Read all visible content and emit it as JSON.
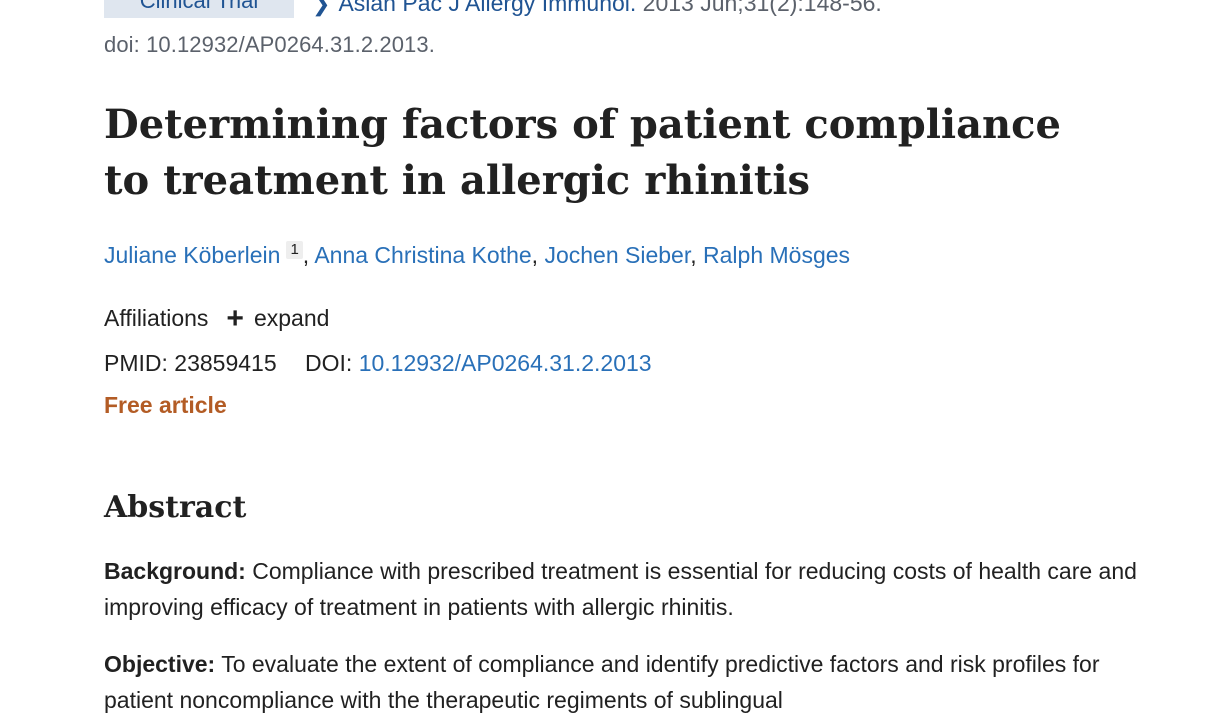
{
  "top": {
    "badge": "Clinical Trial",
    "journal_name": "Asian Pac J Allergy Immunol.",
    "citation": " 2013 Jun;31(2):148-56.",
    "doi_line": "doi: 10.12932/AP0264.31.2.2013."
  },
  "title": "Determining factors of patient compliance to treatment in allergic rhinitis",
  "authors": [
    {
      "name": "Juliane Köberlein",
      "aff": "1"
    },
    {
      "name": "Anna Christina Kothe"
    },
    {
      "name": "Jochen Sieber"
    },
    {
      "name": "Ralph Mösges"
    }
  ],
  "affiliations": {
    "label": "Affiliations",
    "expand": "expand"
  },
  "ids": {
    "pmid_label": "PMID:",
    "pmid": "23859415",
    "doi_label": "DOI:",
    "doi": "10.12932/AP0264.31.2.2013"
  },
  "free_article": "Free article",
  "abstract": {
    "heading": "Abstract",
    "sections": [
      {
        "label": "Background:",
        "text": " Compliance with prescribed treatment is essential for reducing costs of health care and improving efficacy of treatment in patients with allergic rhinitis."
      },
      {
        "label": "Objective:",
        "text": " To evaluate the extent of compliance and identify predictive factors and risk profiles for patient noncompliance with the therapeutic regiments of sublingual"
      }
    ]
  },
  "colors": {
    "link": "#2970b8",
    "free": "#b35c25",
    "badge_bg": "#dfe6ef"
  }
}
